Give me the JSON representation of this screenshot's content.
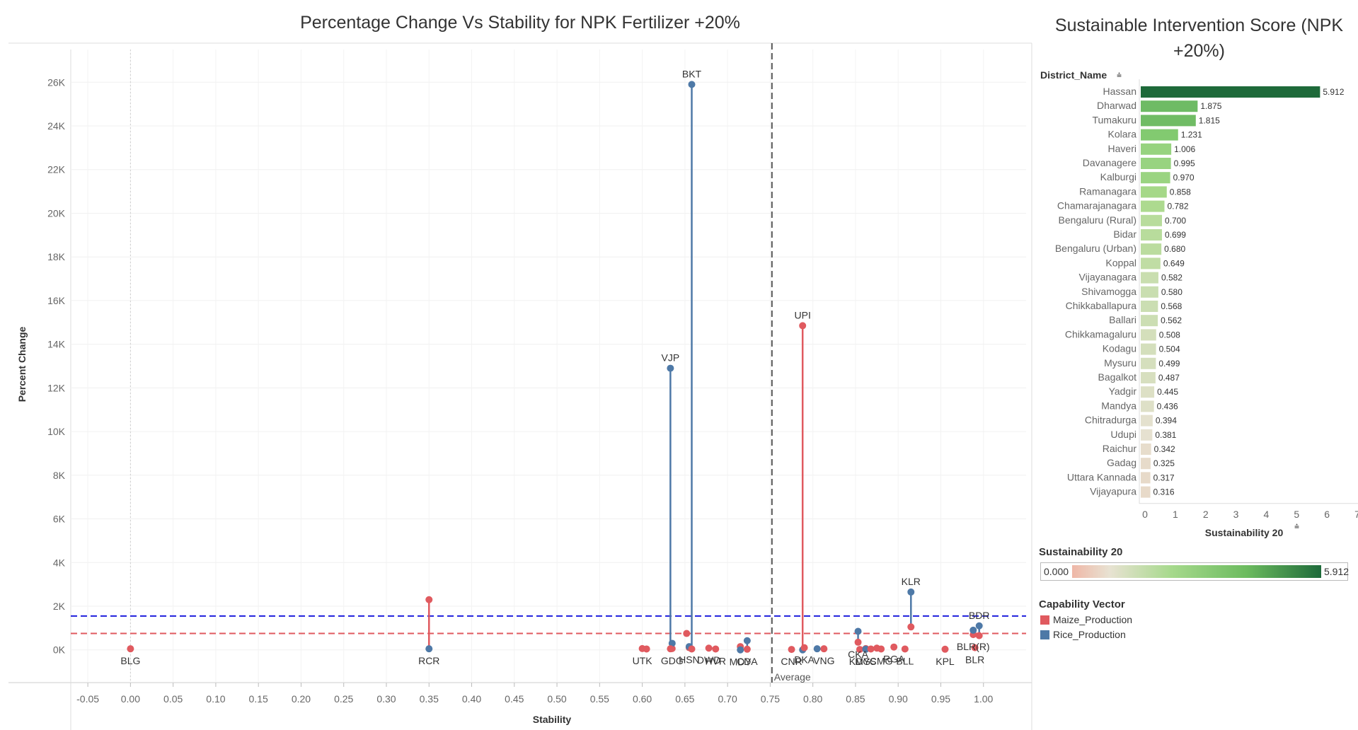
{
  "chart_data": [
    {
      "type": "scatter",
      "title": "Percentage Change Vs Stability for NPK Fertilizer +20%",
      "xlabel": "Stability",
      "ylabel": "Percent Change",
      "xlim": [
        -0.07,
        1.05
      ],
      "ylim": [
        -1500,
        27500
      ],
      "x_ticks": [
        "-0.05",
        "0.00",
        "0.05",
        "0.10",
        "0.15",
        "0.20",
        "0.25",
        "0.30",
        "0.35",
        "0.40",
        "0.45",
        "0.50",
        "0.55",
        "0.60",
        "0.65",
        "0.70",
        "0.75",
        "0.80",
        "0.85",
        "0.90",
        "0.95",
        "1.00"
      ],
      "y_ticks": [
        "0K",
        "2K",
        "4K",
        "6K",
        "8K",
        "10K",
        "12K",
        "14K",
        "16K",
        "18K",
        "20K",
        "22K",
        "24K",
        "26K"
      ],
      "average_stability": 0.752,
      "average_label": "Average",
      "reference_lines": {
        "rice": 1550,
        "maize": 750
      },
      "colors": {
        "maize": "#e05a5f",
        "rice": "#4e79a7",
        "rice_line": "#1f1fdd",
        "maize_line": "#e05a5f",
        "average_line": "#555555"
      },
      "series": [
        {
          "name": "Maize_Production",
          "color": "#e05a5f"
        },
        {
          "name": "Rice_Production",
          "color": "#4e79a7"
        }
      ],
      "points": [
        {
          "label": "BLG",
          "x": 0.0,
          "maize": 50,
          "rice": null
        },
        {
          "label": "RCR",
          "x": 0.35,
          "maize": 2300,
          "rice": 50
        },
        {
          "label": "UTK",
          "x": 0.6,
          "maize": 60,
          "rice": null
        },
        {
          "label": "",
          "x": 0.605,
          "maize": 40,
          "rice": null
        },
        {
          "label": "GDG",
          "x": 0.635,
          "maize": 60,
          "rice": 300
        },
        {
          "label": "VJP",
          "x": 0.633,
          "maize": 50,
          "rice": 12900
        },
        {
          "label": "",
          "x": 0.652,
          "maize": 750,
          "rice": null
        },
        {
          "label": "HSN",
          "x": 0.655,
          "maize": 100,
          "rice": 150
        },
        {
          "label": "BKT",
          "x": 0.658,
          "maize": 40,
          "rice": 25900
        },
        {
          "label": "DWD",
          "x": 0.678,
          "maize": 80,
          "rice": null
        },
        {
          "label": "HVR",
          "x": 0.686,
          "maize": 40,
          "rice": null
        },
        {
          "label": "MDY",
          "x": 0.715,
          "maize": 150,
          "rice": 0
        },
        {
          "label": "CDA",
          "x": 0.723,
          "maize": 30,
          "rice": 420
        },
        {
          "label": "CNR",
          "x": 0.775,
          "maize": 20,
          "rice": null
        },
        {
          "label": "UPI",
          "x": 0.788,
          "maize": 14850,
          "rice": 0
        },
        {
          "label": "DKA",
          "x": 0.79,
          "maize": 100,
          "rice": null
        },
        {
          "label": "",
          "x": 0.805,
          "maize": null,
          "rice": 50
        },
        {
          "label": "VNG",
          "x": 0.813,
          "maize": 50,
          "rice": null
        },
        {
          "label": "CKA",
          "x": 0.853,
          "maize": 350,
          "rice": 850
        },
        {
          "label": "KDG",
          "x": 0.855,
          "maize": 20,
          "rice": null
        },
        {
          "label": "MYS",
          "x": 0.862,
          "maize": 60,
          "rice": 30
        },
        {
          "label": "",
          "x": 0.868,
          "maize": 40,
          "rice": null
        },
        {
          "label": "",
          "x": 0.875,
          "maize": 80,
          "rice": null
        },
        {
          "label": "RGA",
          "x": 0.895,
          "maize": 130,
          "rice": null
        },
        {
          "label": "CMG",
          "x": 0.88,
          "maize": 40,
          "rice": null
        },
        {
          "label": "BLL",
          "x": 0.908,
          "maize": 40,
          "rice": null
        },
        {
          "label": "KLR",
          "x": 0.915,
          "maize": 1050,
          "rice": 2650
        },
        {
          "label": "KPL",
          "x": 0.955,
          "maize": 30,
          "rice": null
        },
        {
          "label": "BLR(R)",
          "x": 0.988,
          "maize": 700,
          "rice": 900
        },
        {
          "label": "BLR",
          "x": 0.99,
          "maize": 100,
          "rice": null
        },
        {
          "label": "BDR",
          "x": 0.995,
          "maize": 650,
          "rice": 1100
        }
      ]
    },
    {
      "type": "bar",
      "title": "Sustainable Intervention Score (NPK +20%)",
      "dimension_label": "District_Name",
      "xlabel": "Sustainability 20",
      "xlim": [
        0,
        7
      ],
      "x_ticks": [
        "0",
        "1",
        "2",
        "3",
        "4",
        "5",
        "6",
        "7"
      ],
      "categories": [
        "Hassan",
        "Dharwad",
        "Tumakuru",
        "Kolara",
        "Haveri",
        "Davanagere",
        "Kalburgi",
        "Ramanagara",
        "Chamarajanagara",
        "Bengaluru (Rural)",
        "Bidar",
        "Bengaluru (Urban)",
        "Koppal",
        "Vijayanagara",
        "Shivamogga",
        "Chikkaballapura",
        "Ballari",
        "Chikkamagaluru",
        "Kodagu",
        "Mysuru",
        "Bagalkot",
        "Yadgir",
        "Mandya",
        "Chitradurga",
        "Udupi",
        "Raichur",
        "Gadag",
        "Uttara Kannada",
        "Vijayapura"
      ],
      "values": [
        5.912,
        1.875,
        1.815,
        1.231,
        1.006,
        0.995,
        0.97,
        0.858,
        0.782,
        0.7,
        0.699,
        0.68,
        0.649,
        0.582,
        0.58,
        0.568,
        0.562,
        0.508,
        0.504,
        0.499,
        0.487,
        0.445,
        0.436,
        0.394,
        0.381,
        0.342,
        0.325,
        0.317,
        0.316
      ],
      "value_labels": [
        "5.912",
        "1.875",
        "1.815",
        "1.231",
        "1.006",
        "0.995",
        "0.970",
        "0.858",
        "0.782",
        "0.700",
        "0.699",
        "0.680",
        "0.649",
        "0.582",
        "0.580",
        "0.568",
        "0.562",
        "0.508",
        "0.504",
        "0.499",
        "0.487",
        "0.445",
        "0.436",
        "0.394",
        "0.381",
        "0.342",
        "0.325",
        "0.317",
        "0.316"
      ]
    }
  ],
  "legend": {
    "gradient_title": "Sustainability 20",
    "gradient_min": "0.000",
    "gradient_max": "5.912",
    "capability_title": "Capability Vector",
    "items": [
      {
        "label": "Maize_Production",
        "color": "#e05a5f"
      },
      {
        "label": "Rice_Production",
        "color": "#4e79a7"
      }
    ]
  },
  "icons": {
    "sort": "sort-icon"
  }
}
